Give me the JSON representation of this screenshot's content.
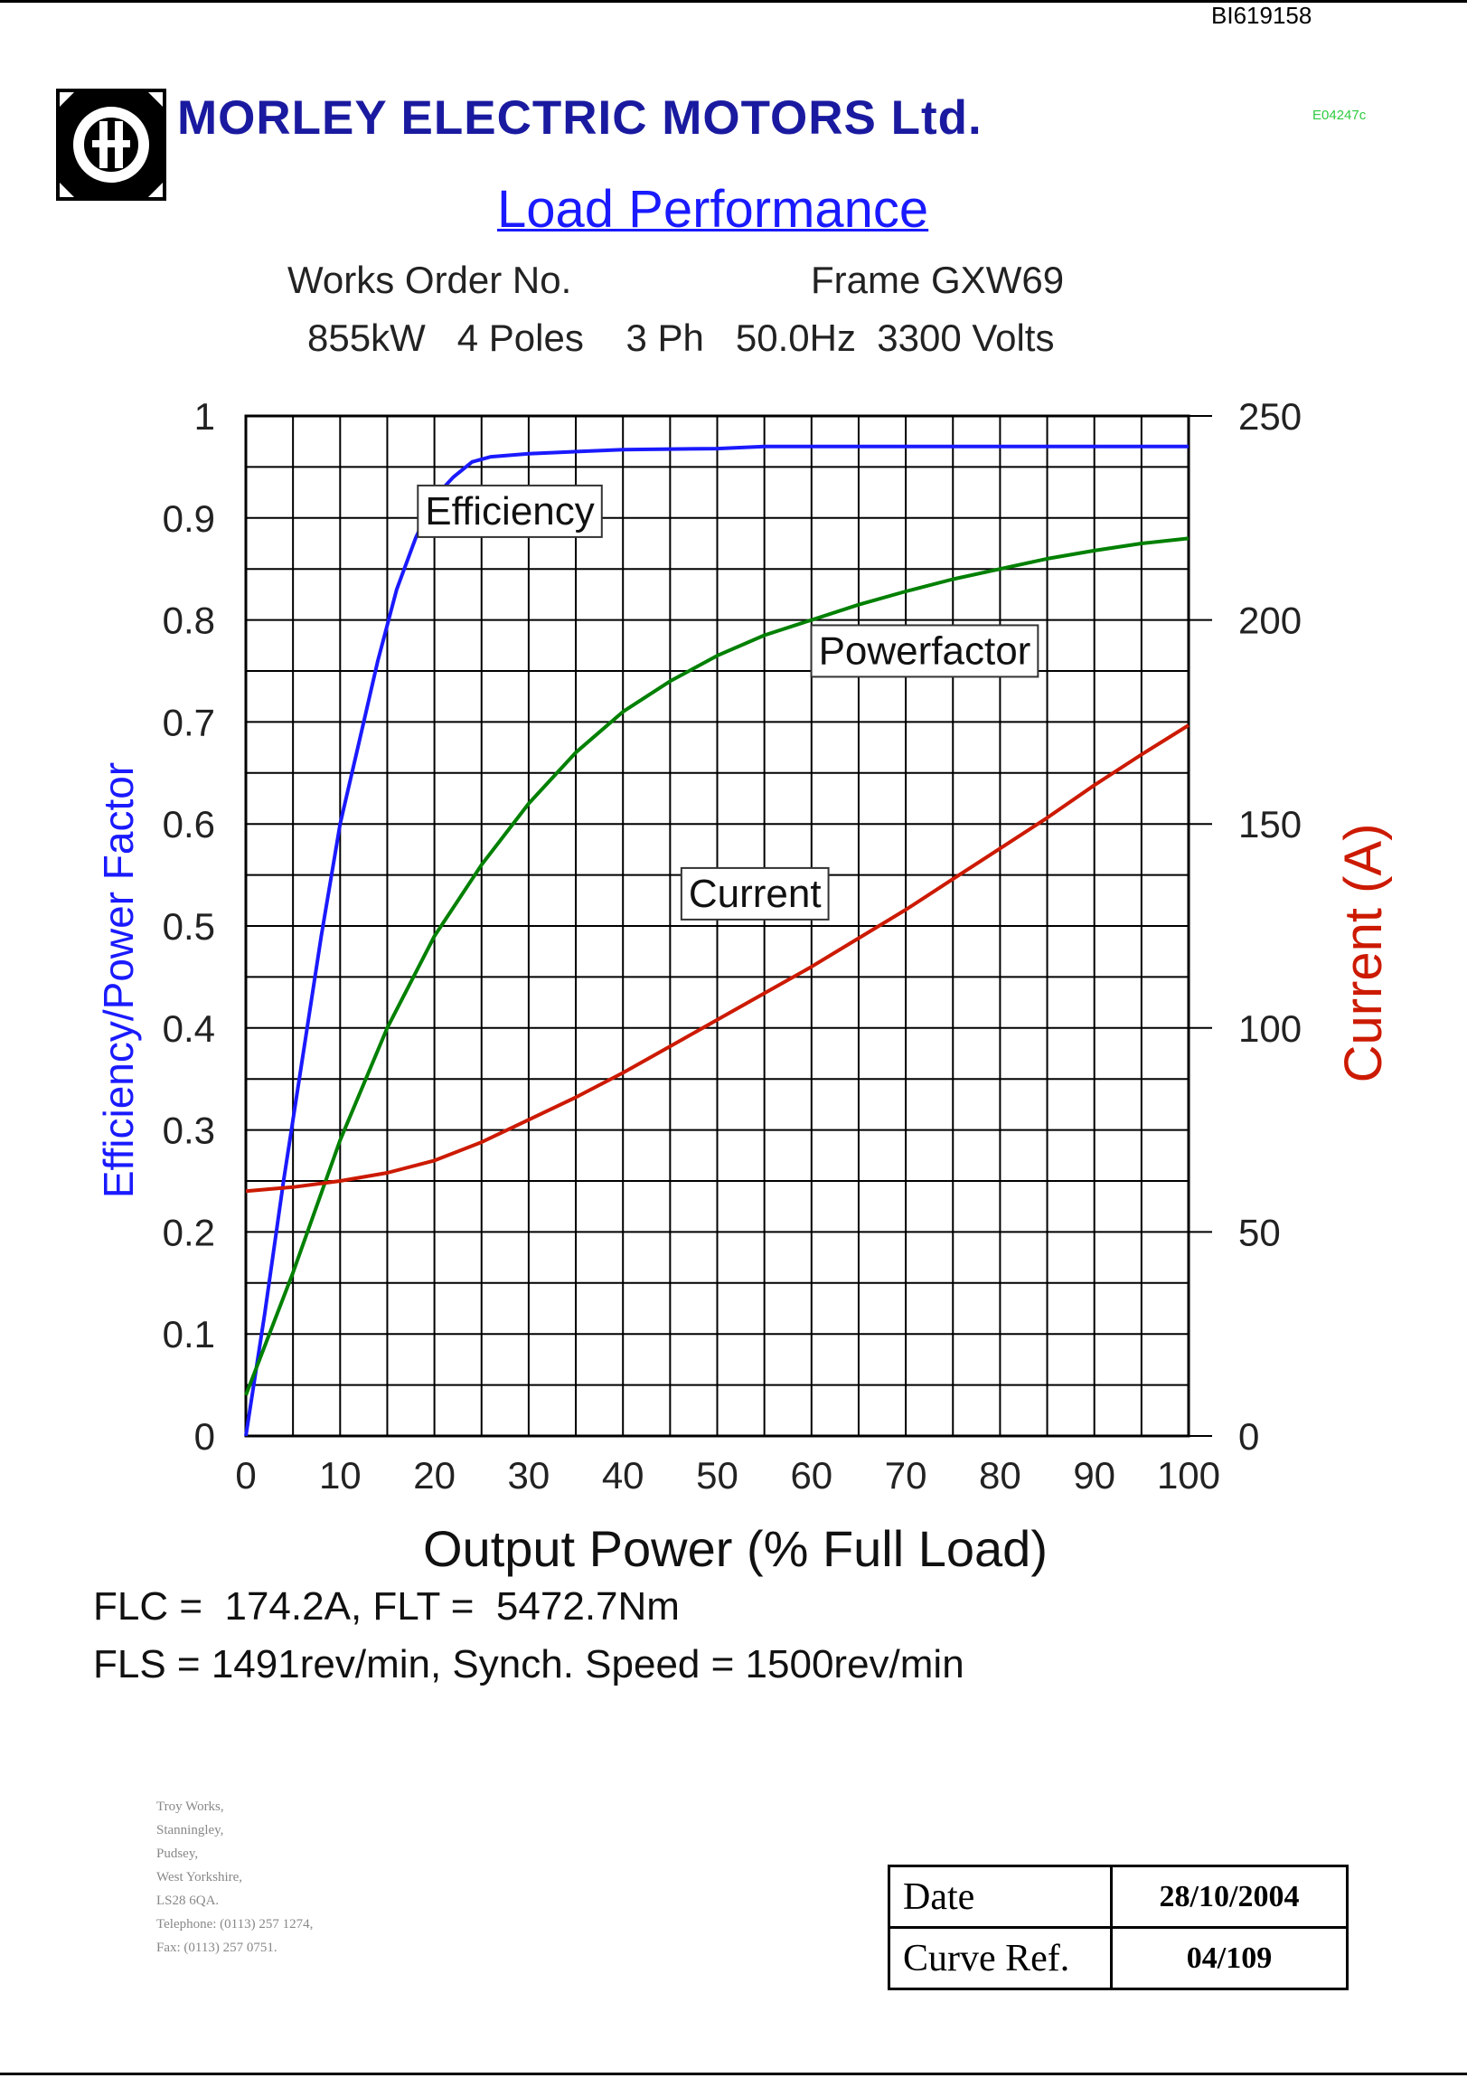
{
  "document": {
    "id": "BI619158",
    "company": "MORLEY ELECTRIC MOTORS Ltd.",
    "small_ref": "E04247c",
    "title": "Load Performance",
    "works_order": "Works Order No.",
    "frame": "Frame GXW69",
    "rating_line": "855kW   4 Poles    3 Ph   50.0Hz  3300 Volts",
    "formula_1": "FLC =  174.2A, FLT =  5472.7Nm",
    "formula_2": "FLS = 1491rev/min, Synch. Speed = 1500rev/min",
    "address": [
      "Troy Works,",
      "Stanningley,",
      "Pudsey,",
      "West Yorkshire,",
      "LS28 6QA.",
      "Telephone: (0113) 257 1274,",
      "Fax: (0113) 257 0751."
    ],
    "date_label": "Date",
    "date_value": "28/10/2004",
    "curve_ref_label": "Curve Ref.",
    "curve_ref_value": "04/109"
  },
  "colors": {
    "efficiency": "#1a1aff",
    "powerfactor": "#008000",
    "current": "#cc1a00",
    "grid": "#000000"
  },
  "chart_data": {
    "type": "line",
    "xlabel": "Output Power (% Full Load)",
    "ylabel_left": "Efficiency/Power Factor",
    "ylabel_right": "Current (A)",
    "xlim": [
      0,
      100
    ],
    "ylim_left": [
      0,
      1
    ],
    "ylim_right": [
      0,
      250
    ],
    "grid": true,
    "x_ticks": [
      0,
      10,
      20,
      30,
      40,
      50,
      60,
      70,
      80,
      90,
      100
    ],
    "y_left_ticks": [
      "0",
      "0.1",
      "0.2",
      "0.3",
      "0.4",
      "0.5",
      "0.6",
      "0.7",
      "0.8",
      "0.9",
      "1"
    ],
    "y_right_ticks": [
      "0",
      "50",
      "100",
      "150",
      "200",
      "250"
    ],
    "series": [
      {
        "name": "Efficiency",
        "axis": "left",
        "points": [
          [
            0,
            0.0
          ],
          [
            2,
            0.12
          ],
          [
            4,
            0.25
          ],
          [
            6,
            0.37
          ],
          [
            8,
            0.49
          ],
          [
            10,
            0.6
          ],
          [
            12,
            0.68
          ],
          [
            14,
            0.76
          ],
          [
            16,
            0.83
          ],
          [
            18,
            0.88
          ],
          [
            20,
            0.92
          ],
          [
            22,
            0.94
          ],
          [
            24,
            0.955
          ],
          [
            26,
            0.96
          ],
          [
            30,
            0.963
          ],
          [
            40,
            0.967
          ],
          [
            50,
            0.968
          ],
          [
            55,
            0.97
          ],
          [
            60,
            0.97
          ],
          [
            70,
            0.97
          ],
          [
            80,
            0.97
          ],
          [
            90,
            0.97
          ],
          [
            100,
            0.97
          ]
        ]
      },
      {
        "name": "Powerfactor",
        "axis": "left",
        "points": [
          [
            0,
            0.04
          ],
          [
            5,
            0.16
          ],
          [
            10,
            0.29
          ],
          [
            15,
            0.4
          ],
          [
            20,
            0.49
          ],
          [
            25,
            0.56
          ],
          [
            30,
            0.62
          ],
          [
            35,
            0.67
          ],
          [
            40,
            0.71
          ],
          [
            45,
            0.74
          ],
          [
            50,
            0.765
          ],
          [
            55,
            0.785
          ],
          [
            60,
            0.8
          ],
          [
            65,
            0.815
          ],
          [
            70,
            0.828
          ],
          [
            75,
            0.84
          ],
          [
            80,
            0.85
          ],
          [
            85,
            0.86
          ],
          [
            90,
            0.868
          ],
          [
            95,
            0.875
          ],
          [
            100,
            0.88
          ]
        ]
      },
      {
        "name": "Current",
        "axis": "right",
        "points": [
          [
            0,
            60
          ],
          [
            5,
            61
          ],
          [
            10,
            62.5
          ],
          [
            15,
            64.5
          ],
          [
            20,
            67.5
          ],
          [
            25,
            72
          ],
          [
            30,
            77.5
          ],
          [
            35,
            83
          ],
          [
            40,
            89
          ],
          [
            45,
            95.5
          ],
          [
            50,
            102
          ],
          [
            55,
            108.5
          ],
          [
            60,
            115
          ],
          [
            65,
            122
          ],
          [
            70,
            129
          ],
          [
            75,
            136.5
          ],
          [
            80,
            144
          ],
          [
            85,
            151.5
          ],
          [
            90,
            159.5
          ],
          [
            95,
            167
          ],
          [
            100,
            174.2
          ]
        ]
      }
    ]
  }
}
